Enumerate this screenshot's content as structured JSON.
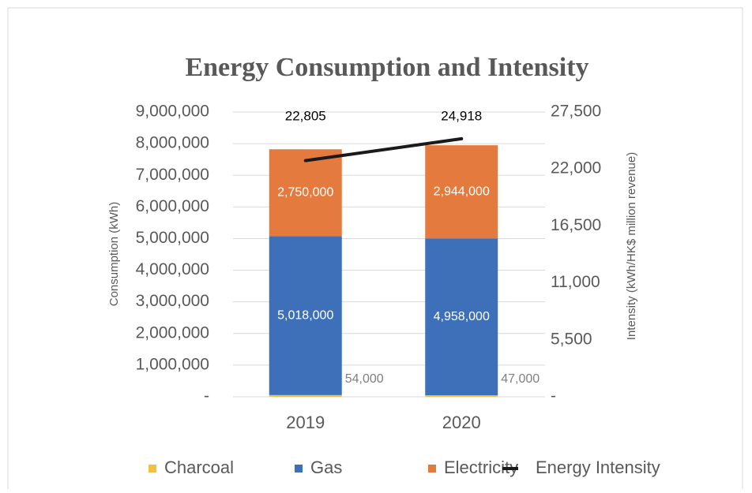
{
  "chart_data": {
    "type": "bar",
    "stacked": true,
    "title": "Energy Consumption and Intensity",
    "ylabel": "Consumption (kWh)",
    "y2label": "Intensity (kWh/HK$ million revenue)",
    "categories": [
      "2019",
      "2020"
    ],
    "series": [
      {
        "name": "Charcoal",
        "color": "#f4c040",
        "values": [
          54000,
          47000
        ],
        "value_labels": [
          "54,000",
          "47,000"
        ]
      },
      {
        "name": "Gas",
        "color": "#3d70b8",
        "values": [
          5018000,
          4958000
        ],
        "value_labels": [
          "5,018,000",
          "4,958,000"
        ]
      },
      {
        "name": "Electricity",
        "color": "#e57a3e",
        "values": [
          2750000,
          2944000
        ],
        "value_labels": [
          "2,750,000",
          "2,944,000"
        ]
      },
      {
        "name": "Energy Intensity",
        "type": "line",
        "axis": "y2",
        "color": "#1a1a1a",
        "values": [
          22805,
          24918
        ],
        "value_labels": [
          "22,805",
          "24,918"
        ]
      }
    ],
    "ylim": [
      0,
      9000000
    ],
    "yticks": [
      {
        "value": 0,
        "label": "-"
      },
      {
        "value": 1000000,
        "label": "1,000,000"
      },
      {
        "value": 2000000,
        "label": "2,000,000"
      },
      {
        "value": 3000000,
        "label": "3,000,000"
      },
      {
        "value": 4000000,
        "label": "4,000,000"
      },
      {
        "value": 5000000,
        "label": "5,000,000"
      },
      {
        "value": 6000000,
        "label": "6,000,000"
      },
      {
        "value": 7000000,
        "label": "7,000,000"
      },
      {
        "value": 8000000,
        "label": "8,000,000"
      },
      {
        "value": 9000000,
        "label": "9,000,000"
      }
    ],
    "y2lim": [
      0,
      27500
    ],
    "y2ticks": [
      {
        "value": 0,
        "label": "-"
      },
      {
        "value": 5500,
        "label": "5,500"
      },
      {
        "value": 11000,
        "label": "11,000"
      },
      {
        "value": 16500,
        "label": "16,500"
      },
      {
        "value": 22000,
        "label": "22,000"
      },
      {
        "value": 27500,
        "label": "27,500"
      }
    ],
    "grid": true,
    "legend": "bottom"
  }
}
